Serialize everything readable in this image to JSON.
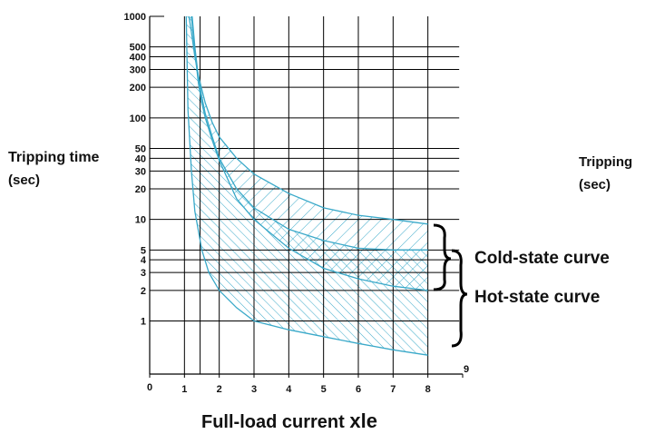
{
  "chart_data": {
    "type": "area",
    "title": "",
    "xlabel": "Full-load current xle",
    "ylabel": "Tripping time (sec)",
    "ylabel_right": "Tripping (sec)",
    "y_scale": "log",
    "xlim": [
      0,
      9
    ],
    "ylim": [
      0.3,
      1000
    ],
    "x_ticks": [
      "0",
      "1",
      "2",
      "3",
      "4",
      "5",
      "6",
      "7",
      "8",
      "9"
    ],
    "y_ticks": [
      "1000",
      "500",
      "400",
      "300",
      "200",
      "100",
      "50",
      "40",
      "30",
      "20",
      "10",
      "5",
      "4",
      "3",
      "2",
      "1"
    ],
    "grid": true,
    "series": [
      {
        "name": "Cold-state curve",
        "color": "#3aa9c9",
        "upper": {
          "x": [
            1.13,
            1.2,
            1.3,
            1.4,
            1.5,
            1.6,
            1.8,
            2,
            2.5,
            3,
            4,
            5,
            6,
            7,
            8
          ],
          "y": [
            1000,
            700,
            400,
            260,
            190,
            140,
            90,
            65,
            40,
            28,
            18,
            13,
            11,
            10,
            9
          ]
        },
        "lower": {
          "x": [
            1.2,
            1.3,
            1.4,
            1.5,
            1.6,
            1.8,
            2,
            2.5,
            3,
            4,
            5,
            6,
            7,
            8
          ],
          "y": [
            1000,
            450,
            220,
            140,
            100,
            60,
            38,
            16,
            10,
            5.2,
            3.3,
            2.6,
            2.2,
            2.0
          ]
        }
      },
      {
        "name": "Hot-state curve",
        "color": "#3aa9c9",
        "upper": {
          "x": [
            1.22,
            1.3,
            1.4,
            1.5,
            1.6,
            1.8,
            2,
            2.5,
            3,
            4,
            5,
            6,
            7,
            8
          ],
          "y": [
            1000,
            500,
            250,
            160,
            110,
            65,
            40,
            20,
            13,
            8,
            6.2,
            5.2,
            5,
            5
          ]
        },
        "lower": {
          "x": [
            1.05,
            1.1,
            1.2,
            1.3,
            1.5,
            1.7,
            2,
            2.5,
            3,
            4,
            5,
            6,
            7,
            8
          ],
          "y": [
            1000,
            120,
            30,
            12,
            5,
            3,
            2,
            1.35,
            1.0,
            0.82,
            0.7,
            0.6,
            0.52,
            0.46
          ]
        }
      }
    ],
    "annotations": [
      "Cold-state curve",
      "Hot-state curve"
    ]
  }
}
